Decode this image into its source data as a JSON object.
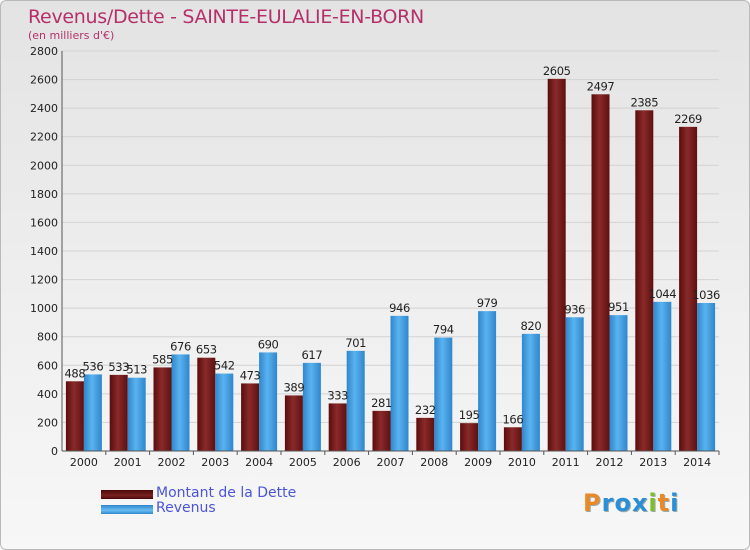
{
  "header": {
    "title": "Revenus/Dette - SAINTE-EULALIE-EN-BORN",
    "subtitle": "(en milliers d'€)"
  },
  "chart_data": {
    "type": "bar",
    "title": "Revenus/Dette - SAINTE-EULALIE-EN-BORN",
    "ylabel": "(en milliers d'€)",
    "xlabel": "",
    "ylim": [
      0,
      2800
    ],
    "yticks": [
      0,
      200,
      400,
      600,
      800,
      1000,
      1200,
      1400,
      1600,
      1800,
      2000,
      2200,
      2400,
      2600,
      2800
    ],
    "grid": true,
    "legend_position": "bottom-left",
    "categories": [
      "2000",
      "2001",
      "2002",
      "2003",
      "2004",
      "2005",
      "2006",
      "2007",
      "2008",
      "2009",
      "2010",
      "2011",
      "2012",
      "2013",
      "2014"
    ],
    "series": [
      {
        "name": "Montant de la Dette",
        "color": "#7a1c1c",
        "values": [
          488,
          533,
          585,
          653,
          473,
          389,
          333,
          281,
          232,
          195,
          166,
          2605,
          2497,
          2385,
          2269
        ]
      },
      {
        "name": "Revenus",
        "color": "#3d9be0",
        "values": [
          536,
          513,
          676,
          542,
          690,
          617,
          701,
          946,
          794,
          979,
          820,
          936,
          951,
          1044,
          1036
        ]
      }
    ]
  },
  "legend": {
    "items": [
      {
        "label": "Montant de la Dette",
        "color": "#6e1010"
      },
      {
        "label": "Revenus",
        "color": "#3d9be0"
      }
    ]
  },
  "logo": {
    "text": "Proxiti",
    "letters": [
      "P",
      "r",
      "o",
      "x",
      "i",
      "t",
      "i"
    ],
    "colors": [
      "#e8892a",
      "#2a8fd6",
      "#2a8fd6",
      "#2a8fd6",
      "#7bbf2a",
      "#e8892a",
      "#2a8fd6"
    ]
  }
}
